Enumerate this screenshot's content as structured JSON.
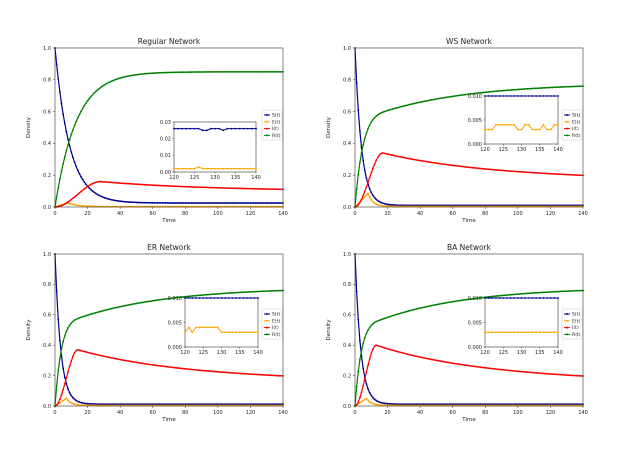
{
  "colors": {
    "S": "#00008b",
    "E": "#ffa500",
    "I": "#ff0000",
    "R": "#008000"
  },
  "legend": [
    "S(t)",
    "E(t)",
    "I(t)",
    "R(t)"
  ],
  "chart_data": [
    {
      "type": "line",
      "title": "Regular Network",
      "xlabel": "Time",
      "ylabel": "Density",
      "xlim": [
        0,
        140
      ],
      "ylim": [
        0,
        1.0
      ],
      "xticks": [
        "0",
        "20",
        "40",
        "60",
        "80",
        "100",
        "120",
        "140"
      ],
      "yticks": [
        "0.0",
        "0.2",
        "0.4",
        "0.6",
        "0.8",
        "1.0"
      ],
      "legend_position": "center-right",
      "model": {
        "S": {
          "base": 0.025,
          "peak": 1.0,
          "tau": 9
        },
        "E": {
          "base": 0.002,
          "peak": 0.025,
          "t0": 8,
          "tau": 6
        },
        "I": {
          "peak": 0.16,
          "tp": 28,
          "end": 0.11
        },
        "R": {
          "end": 0.85,
          "tau": 13
        }
      },
      "inset": {
        "xlim": [
          120,
          140
        ],
        "ylim": [
          0,
          0.03
        ],
        "xticks": [
          "120",
          "125",
          "130",
          "135",
          "140"
        ],
        "yticks": [
          "0.00",
          "0.01",
          "0.02",
          "0.03"
        ],
        "series": [
          {
            "name": "S(t)",
            "values": [
              0.026,
              0.026,
              0.026,
              0.026,
              0.026,
              0.026,
              0.026,
              0.025,
              0.025,
              0.026,
              0.026,
              0.026,
              0.025,
              0.026,
              0.026,
              0.026,
              0.026,
              0.026,
              0.026,
              0.026,
              0.026
            ]
          },
          {
            "name": "E(t)",
            "values": [
              0.002,
              0.002,
              0.002,
              0.002,
              0.002,
              0.002,
              0.003,
              0.002,
              0.002,
              0.002,
              0.002,
              0.002,
              0.002,
              0.002,
              0.002,
              0.002,
              0.002,
              0.002,
              0.002,
              0.002,
              0.002
            ]
          }
        ]
      }
    },
    {
      "type": "line",
      "title": "WS Network",
      "xlabel": "Time",
      "ylabel": "Density",
      "xlim": [
        0,
        140
      ],
      "ylim": [
        0,
        1.0
      ],
      "xticks": [
        "0",
        "20",
        "40",
        "60",
        "80",
        "100",
        "120",
        "140"
      ],
      "yticks": [
        "0.0",
        "0.2",
        "0.4",
        "0.6",
        "0.8",
        "1.0"
      ],
      "legend_position": "center-right",
      "model": {
        "S": {
          "base": 0.01,
          "peak": 1.0,
          "tau": 4
        },
        "E": {
          "base": 0.003,
          "peak": 0.085,
          "t0": 8,
          "tau": 3
        },
        "I": {
          "peak": 0.34,
          "tp": 17,
          "end": 0.2
        },
        "R": {
          "end": 0.76,
          "tau": 5,
          "knee": 0.6,
          "tk": 18
        }
      },
      "inset": {
        "xlim": [
          120,
          140
        ],
        "ylim": [
          0,
          0.01
        ],
        "xticks": [
          "120",
          "125",
          "130",
          "135",
          "140"
        ],
        "yticks": [
          "0.000",
          "0.005",
          "0.010"
        ],
        "series": [
          {
            "name": "S(t)",
            "values": [
              0.01,
              0.01,
              0.01,
              0.01,
              0.01,
              0.01,
              0.01,
              0.01,
              0.01,
              0.01,
              0.01,
              0.01,
              0.01,
              0.01,
              0.01,
              0.01,
              0.01,
              0.01,
              0.01,
              0.01,
              0.01
            ]
          },
          {
            "name": "E(t)",
            "values": [
              0.003,
              0.003,
              0.003,
              0.004,
              0.004,
              0.004,
              0.004,
              0.004,
              0.004,
              0.003,
              0.003,
              0.004,
              0.004,
              0.003,
              0.003,
              0.003,
              0.004,
              0.003,
              0.003,
              0.004,
              0.004
            ]
          }
        ]
      }
    },
    {
      "type": "line",
      "title": "ER Network",
      "xlabel": "Time",
      "ylabel": "Density",
      "xlim": [
        0,
        140
      ],
      "ylim": [
        0,
        1.0
      ],
      "xticks": [
        "0",
        "20",
        "40",
        "60",
        "80",
        "100",
        "120",
        "140"
      ],
      "yticks": [
        "0.0",
        "0.2",
        "0.4",
        "0.6",
        "0.8",
        "1.0"
      ],
      "legend_position": "center-right",
      "model": {
        "S": {
          "base": 0.012,
          "peak": 1.0,
          "tau": 3.5
        },
        "E": {
          "base": 0.003,
          "peak": 0.05,
          "t0": 7,
          "tau": 3
        },
        "I": {
          "peak": 0.37,
          "tp": 14,
          "end": 0.2
        },
        "R": {
          "end": 0.76,
          "tau": 4,
          "knee": 0.58,
          "tk": 15
        }
      },
      "inset": {
        "xlim": [
          120,
          140
        ],
        "ylim": [
          0,
          0.01
        ],
        "xticks": [
          "120",
          "125",
          "130",
          "135",
          "140"
        ],
        "yticks": [
          "0.000",
          "0.005",
          "0.010"
        ],
        "series": [
          {
            "name": "S(t)",
            "values": [
              0.01,
              0.01,
              0.01,
              0.01,
              0.01,
              0.01,
              0.01,
              0.01,
              0.01,
              0.01,
              0.01,
              0.01,
              0.01,
              0.01,
              0.01,
              0.01,
              0.01,
              0.01,
              0.01,
              0.01,
              0.01
            ]
          },
          {
            "name": "E(t)",
            "values": [
              0.003,
              0.004,
              0.003,
              0.004,
              0.004,
              0.004,
              0.004,
              0.004,
              0.004,
              0.004,
              0.003,
              0.003,
              0.003,
              0.003,
              0.003,
              0.003,
              0.003,
              0.003,
              0.003,
              0.003,
              0.003
            ]
          }
        ]
      }
    },
    {
      "type": "line",
      "title": "BA Network",
      "xlabel": "Time",
      "ylabel": "Density",
      "xlim": [
        0,
        140
      ],
      "ylim": [
        0,
        1.0
      ],
      "xticks": [
        "0",
        "20",
        "40",
        "60",
        "80",
        "100",
        "120",
        "140"
      ],
      "yticks": [
        "0.0",
        "0.2",
        "0.4",
        "0.6",
        "0.8",
        "1.0"
      ],
      "legend_position": "center-right",
      "model": {
        "S": {
          "base": 0.012,
          "peak": 1.0,
          "tau": 3.5
        },
        "E": {
          "base": 0.003,
          "peak": 0.05,
          "t0": 7,
          "tau": 3
        },
        "I": {
          "peak": 0.4,
          "tp": 13,
          "end": 0.2
        },
        "R": {
          "end": 0.76,
          "tau": 4,
          "knee": 0.56,
          "tk": 14
        }
      },
      "inset": {
        "xlim": [
          120,
          140
        ],
        "ylim": [
          0,
          0.01
        ],
        "xticks": [
          "120",
          "125",
          "130",
          "135",
          "140"
        ],
        "yticks": [
          "0.000",
          "0.005",
          "0.010"
        ],
        "series": [
          {
            "name": "S(t)",
            "values": [
              0.01,
              0.01,
              0.01,
              0.01,
              0.01,
              0.01,
              0.01,
              0.01,
              0.01,
              0.01,
              0.01,
              0.01,
              0.01,
              0.01,
              0.01,
              0.01,
              0.01,
              0.01,
              0.01,
              0.01,
              0.01
            ]
          },
          {
            "name": "E(t)",
            "values": [
              0.003,
              0.003,
              0.003,
              0.003,
              0.003,
              0.003,
              0.003,
              0.003,
              0.003,
              0.003,
              0.003,
              0.003,
              0.003,
              0.003,
              0.003,
              0.003,
              0.003,
              0.003,
              0.003,
              0.003,
              0.003
            ]
          }
        ]
      }
    }
  ]
}
